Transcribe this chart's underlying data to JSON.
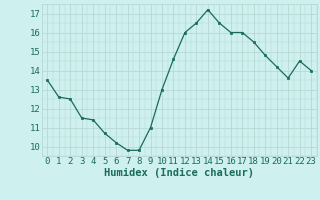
{
  "x": [
    0,
    1,
    2,
    3,
    4,
    5,
    6,
    7,
    8,
    9,
    10,
    11,
    12,
    13,
    14,
    15,
    16,
    17,
    18,
    19,
    20,
    21,
    22,
    23
  ],
  "y": [
    13.5,
    12.6,
    12.5,
    11.5,
    11.4,
    10.7,
    10.2,
    9.8,
    9.8,
    11.0,
    13.0,
    14.6,
    16.0,
    16.5,
    17.2,
    16.5,
    16.0,
    16.0,
    15.5,
    14.8,
    14.2,
    13.6,
    14.5,
    14.0
  ],
  "line_color": "#1a6b5a",
  "marker_color": "#1a6b5a",
  "bg_color": "#cef0ee",
  "grid_color": "#b8d8d4",
  "xlabel": "Humidex (Indice chaleur)",
  "ylim": [
    9.5,
    17.5
  ],
  "xlim": [
    -0.5,
    23.5
  ],
  "yticks": [
    10,
    11,
    12,
    13,
    14,
    15,
    16,
    17
  ],
  "xticks": [
    0,
    1,
    2,
    3,
    4,
    5,
    6,
    7,
    8,
    9,
    10,
    11,
    12,
    13,
    14,
    15,
    16,
    17,
    18,
    19,
    20,
    21,
    22,
    23
  ],
  "tick_fontsize": 6.5,
  "xlabel_fontsize": 7.5
}
